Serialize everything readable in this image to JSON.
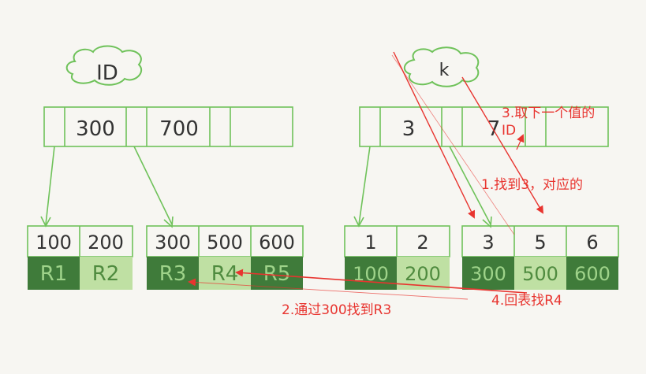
{
  "trees": [
    {
      "name": "ID",
      "root_keys": [
        "300",
        "700"
      ],
      "leaves": [
        {
          "keys": [
            "100",
            "200"
          ],
          "rows": [
            "R1",
            "R2"
          ]
        },
        {
          "keys": [
            "300",
            "500",
            "600"
          ],
          "rows": [
            "R3",
            "R4",
            "R5"
          ]
        }
      ]
    },
    {
      "name": "k",
      "root_keys": [
        "3",
        "7"
      ],
      "leaves": [
        {
          "keys": [
            "1",
            "2"
          ],
          "rows": [
            "100",
            "200"
          ]
        },
        {
          "keys": [
            "3",
            "5",
            "6"
          ],
          "rows": [
            "300",
            "500",
            "600"
          ]
        }
      ]
    }
  ],
  "annotations": {
    "step1": "1.找到3，对应的",
    "step2": "2.通过300找到R3",
    "step3_line1": "3.取下一个值的",
    "step3_line2": "ID",
    "step4": "4.回表找R4"
  },
  "colors": {
    "green_line": "#6fc25a",
    "dark_green": "#3f7b3a",
    "light_green": "#bfe0a3",
    "red": "#e8342f",
    "ink": "#333333"
  }
}
